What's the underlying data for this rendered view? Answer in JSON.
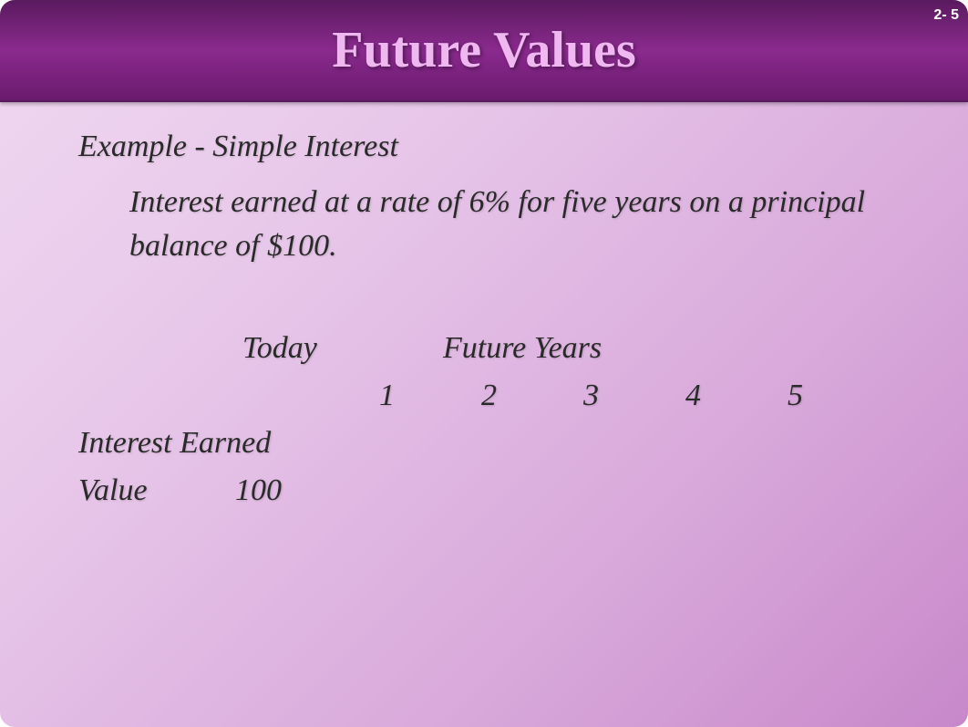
{
  "slide": {
    "title": "Future Values",
    "page_number": "2- 5"
  },
  "content": {
    "example_heading": "Example - Simple Interest",
    "description": "Interest earned at a rate of 6% for five years on a principal balance of $100."
  },
  "table": {
    "today_label": "Today",
    "future_years_label": "Future Years",
    "year_numbers": [
      "1",
      "2",
      "3",
      "4",
      "5"
    ],
    "interest_earned_label": "Interest Earned",
    "value_label": "Value",
    "value_today": "100"
  },
  "styling": {
    "title_color": "#f0b8f0",
    "header_gradient_start": "#5a1a5e",
    "header_gradient_mid": "#8a2a8e",
    "header_gradient_end": "#6a1a6e",
    "body_gradient_start": "#f0d8f0",
    "body_gradient_end": "#c888ca",
    "text_color": "#2a2a2a",
    "title_fontsize": 56,
    "body_fontsize": 34,
    "font_style": "italic",
    "font_family": "Times New Roman"
  }
}
